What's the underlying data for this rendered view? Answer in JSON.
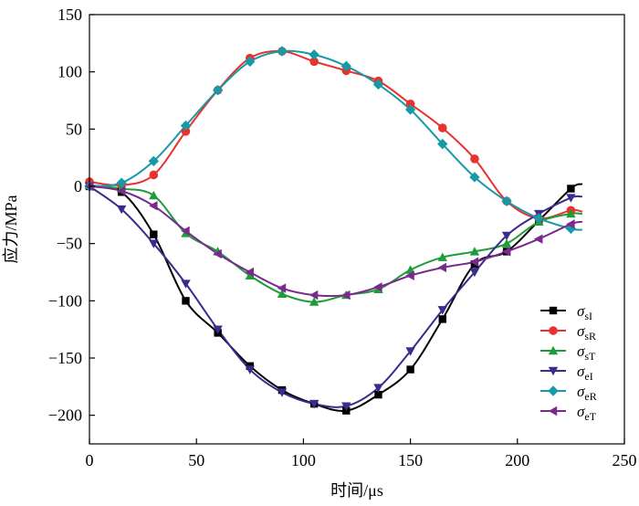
{
  "chart_data": {
    "type": "line",
    "xlabel": "时间/μs",
    "ylabel": "应力/MPa",
    "xlim": [
      0,
      250
    ],
    "ylim": [
      -225,
      150
    ],
    "xticks": [
      "0",
      "50",
      "100",
      "150",
      "200",
      "250"
    ],
    "yticks": [
      "150",
      "100",
      "50",
      "0",
      "−50",
      "−100",
      "−150",
      "−200"
    ],
    "grid": false,
    "legend_position": "bottom-right",
    "series": [
      {
        "name": "σsI",
        "symbol": "σ",
        "sub": "sI",
        "color": "#000000",
        "marker": "square",
        "x": [
          0,
          15,
          30,
          45,
          60,
          75,
          90,
          105,
          120,
          135,
          150,
          165,
          180,
          195,
          210,
          225,
          230
        ],
        "y": [
          0,
          -5,
          -42,
          -100,
          -128,
          -157,
          -178,
          -190,
          -196,
          -182,
          -160,
          -116,
          -68,
          -57,
          -30,
          -2,
          2
        ]
      },
      {
        "name": "σsR",
        "symbol": "σ",
        "sub": "sR",
        "color": "#e8322d",
        "marker": "circle",
        "x": [
          0,
          15,
          30,
          45,
          60,
          75,
          90,
          105,
          120,
          135,
          150,
          165,
          180,
          195,
          210,
          225,
          230
        ],
        "y": [
          4,
          1,
          10,
          48,
          84,
          112,
          118,
          109,
          101,
          92,
          72,
          51,
          24,
          -13,
          -28,
          -21,
          -22
        ]
      },
      {
        "name": "σsT",
        "symbol": "σ",
        "sub": "sT",
        "color": "#1f9c3a",
        "marker": "triangle-up",
        "x": [
          0,
          15,
          30,
          45,
          60,
          75,
          90,
          105,
          120,
          135,
          150,
          165,
          180,
          195,
          210,
          225,
          230
        ],
        "y": [
          1,
          -2,
          -8,
          -41,
          -57,
          -78,
          -94,
          -101,
          -95,
          -90,
          -73,
          -62,
          -57,
          -50,
          -31,
          -24,
          -24
        ]
      },
      {
        "name": "σeI",
        "symbol": "σ",
        "sub": "eI",
        "color": "#3d2a8c",
        "marker": "triangle-down",
        "x": [
          0,
          15,
          30,
          45,
          60,
          75,
          90,
          105,
          120,
          135,
          150,
          165,
          180,
          195,
          210,
          225,
          230
        ],
        "y": [
          0,
          -20,
          -50,
          -85,
          -125,
          -160,
          -180,
          -190,
          -192,
          -176,
          -144,
          -108,
          -75,
          -43,
          -24,
          -10,
          -9
        ]
      },
      {
        "name": "σeR",
        "symbol": "σ",
        "sub": "eR",
        "color": "#159aa6",
        "marker": "diamond",
        "x": [
          0,
          15,
          30,
          45,
          60,
          75,
          90,
          105,
          120,
          135,
          150,
          165,
          180,
          195,
          210,
          225,
          230
        ],
        "y": [
          0,
          3,
          22,
          53,
          84,
          109,
          118,
          115,
          105,
          89,
          67,
          37,
          8,
          -13,
          -28,
          -37,
          -38
        ]
      },
      {
        "name": "σeT",
        "symbol": "σ",
        "sub": "eT",
        "color": "#7a2a8c",
        "marker": "triangle-left",
        "x": [
          0,
          15,
          30,
          45,
          60,
          75,
          90,
          105,
          120,
          135,
          150,
          165,
          180,
          195,
          210,
          225,
          230
        ],
        "y": [
          0,
          -4,
          -17,
          -39,
          -59,
          -75,
          -89,
          -95,
          -95,
          -88,
          -78,
          -71,
          -66,
          -57,
          -46,
          -33,
          -31
        ]
      }
    ]
  }
}
